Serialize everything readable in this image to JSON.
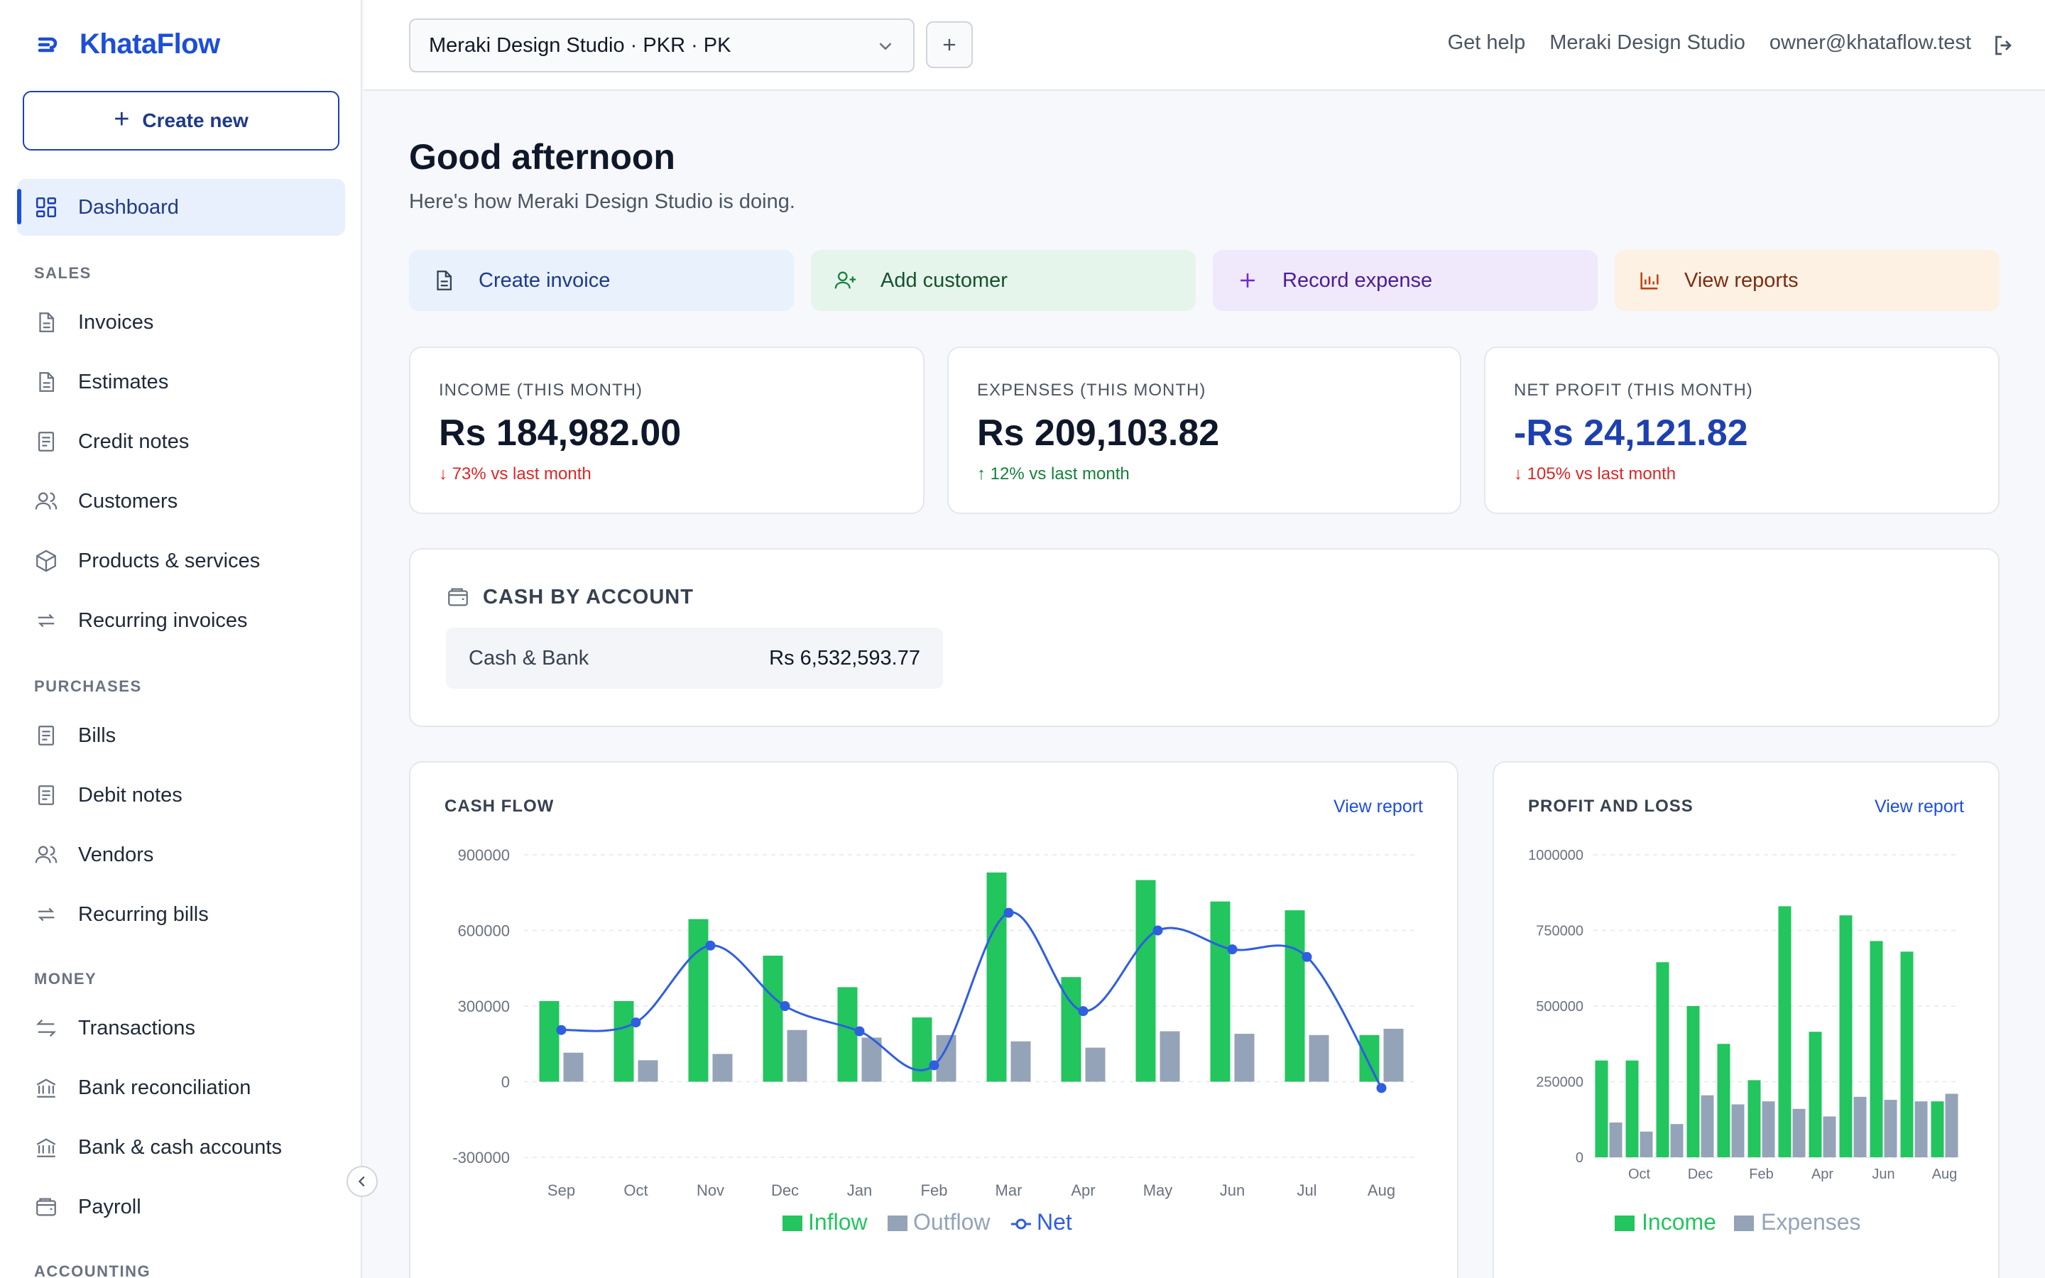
{
  "app": {
    "name": "KhataFlow"
  },
  "sidebar": {
    "create_label": "Create new",
    "dashboard": "Dashboard",
    "sections": [
      {
        "label": "SALES",
        "items": [
          "Invoices",
          "Estimates",
          "Credit notes",
          "Customers",
          "Products & services",
          "Recurring invoices"
        ]
      },
      {
        "label": "PURCHASES",
        "items": [
          "Bills",
          "Debit notes",
          "Vendors",
          "Recurring bills"
        ]
      },
      {
        "label": "MONEY",
        "items": [
          "Transactions",
          "Bank reconciliation",
          "Bank & cash accounts",
          "Payroll"
        ]
      },
      {
        "label": "ACCOUNTING",
        "items": []
      }
    ]
  },
  "topbar": {
    "org_select": "Meraki Design Studio · PKR · PK",
    "get_help": "Get help",
    "org_name": "Meraki Design Studio",
    "email": "owner@khataflow.test"
  },
  "greeting": {
    "title": "Good afternoon",
    "subtitle": "Here's how Meraki Design Studio is doing."
  },
  "quick_actions": [
    {
      "label": "Create invoice",
      "icon": "document-icon",
      "bg": "#e8f1fc",
      "fg": "#1e3a8a"
    },
    {
      "label": "Add customer",
      "icon": "user-plus-icon",
      "bg": "#e6f5ec",
      "fg": "#14532d"
    },
    {
      "label": "Record expense",
      "icon": "plus-icon",
      "bg": "#efe9fb",
      "fg": "#4c1d95"
    },
    {
      "label": "View reports",
      "icon": "bar-chart-icon",
      "bg": "#fdf1e4",
      "fg": "#7c2d12"
    }
  ],
  "kpis": [
    {
      "label": "INCOME (THIS MONTH)",
      "value": "Rs 184,982.00",
      "change": "↓ 73% vs last month",
      "change_color": "#dc2626",
      "value_color": "#0f172a"
    },
    {
      "label": "EXPENSES (THIS MONTH)",
      "value": "Rs 209,103.82",
      "change": "↑ 12% vs last month",
      "change_color": "#15803d",
      "value_color": "#0f172a"
    },
    {
      "label": "NET PROFIT (THIS MONTH)",
      "value": "-Rs 24,121.82",
      "change": "↓ 105% vs last month",
      "change_color": "#dc2626",
      "value_color": "#1e40af"
    }
  ],
  "cash": {
    "title": "CASH BY ACCOUNT",
    "account_name": "Cash & Bank",
    "account_value": "Rs 6,532,593.77"
  },
  "colors": {
    "income": "#22c55e",
    "expense": "#94a3b8",
    "net": "#2f5ee0",
    "accent": "#1d4ed8"
  },
  "chart_data": [
    {
      "type": "bar",
      "title": "CASH FLOW",
      "link": "View report",
      "categories": [
        "Sep",
        "Oct",
        "Nov",
        "Dec",
        "Jan",
        "Feb",
        "Mar",
        "Apr",
        "May",
        "Jun",
        "Jul",
        "Aug"
      ],
      "yticks": [
        900000,
        600000,
        300000,
        0,
        -300000
      ],
      "ylim": [
        -300000,
        900000
      ],
      "series": [
        {
          "name": "Inflow",
          "kind": "bar",
          "values": [
            320000,
            320000,
            645000,
            500000,
            375000,
            255000,
            830000,
            415000,
            800000,
            715000,
            680000,
            185000
          ]
        },
        {
          "name": "Outflow",
          "kind": "bar",
          "values": [
            115000,
            85000,
            110000,
            205000,
            175000,
            185000,
            160000,
            135000,
            200000,
            190000,
            185000,
            210000
          ]
        },
        {
          "name": "Net",
          "kind": "line",
          "values": [
            205000,
            235000,
            540000,
            300000,
            200000,
            65000,
            670000,
            280000,
            600000,
            525000,
            495000,
            -25000
          ]
        }
      ],
      "legend_position": "bottom",
      "grid": true
    },
    {
      "type": "bar",
      "title": "PROFIT AND LOSS",
      "link": "View report",
      "categories": [
        "Sep",
        "Oct",
        "Nov",
        "Dec",
        "Jan",
        "Feb",
        "Mar",
        "Apr",
        "May",
        "Jun",
        "Jul",
        "Aug"
      ],
      "tick_labels": [
        "Oct",
        "Dec",
        "Feb",
        "Apr",
        "Jun",
        "Aug"
      ],
      "yticks": [
        1000000,
        750000,
        500000,
        250000,
        0
      ],
      "ylim": [
        0,
        1000000
      ],
      "series": [
        {
          "name": "Income",
          "kind": "bar",
          "values": [
            320000,
            320000,
            645000,
            500000,
            375000,
            255000,
            830000,
            415000,
            800000,
            715000,
            680000,
            185000
          ]
        },
        {
          "name": "Expenses",
          "kind": "bar",
          "values": [
            115000,
            85000,
            110000,
            205000,
            175000,
            185000,
            160000,
            135000,
            200000,
            190000,
            185000,
            210000
          ]
        }
      ],
      "legend_position": "bottom",
      "grid": true
    }
  ]
}
